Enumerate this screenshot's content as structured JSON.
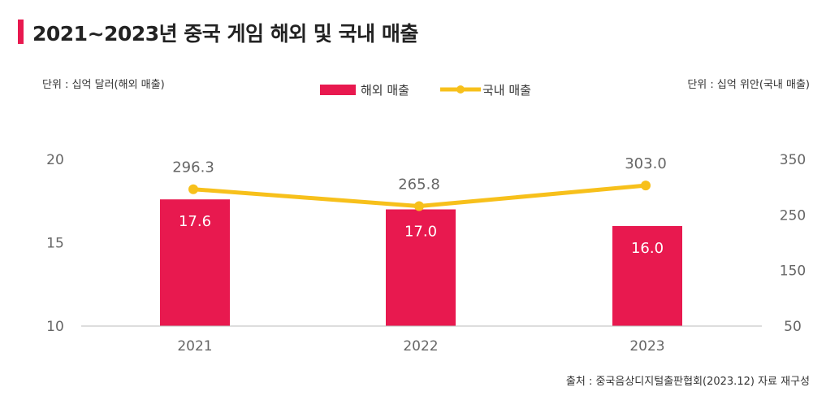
{
  "title": "2021~2023년 중국 게임 해외 및 국내 매출",
  "unit_left": "단위 : 십억 달러(해외 매출)",
  "unit_right": "단위 : 십억 위안(국내 매출)",
  "source": "출처 : 중국음상디지털출판협회(2023.12) 자료 재구성",
  "colors": {
    "accent": "#e8194f",
    "bar": "#e8194f",
    "line": "#f7c01b"
  },
  "chart_data": {
    "type": "bar",
    "categories": [
      "2021",
      "2022",
      "2023"
    ],
    "series": [
      {
        "name": "해외 매출",
        "type": "bar",
        "axis": "left",
        "values": [
          17.6,
          17.0,
          16.0
        ],
        "labels": [
          "17.6",
          "17.0",
          "16.0"
        ]
      },
      {
        "name": "국내 매출",
        "type": "line",
        "axis": "right",
        "values": [
          296.3,
          265.8,
          303.0
        ],
        "labels": [
          "296.3",
          "265.8",
          "303.0"
        ]
      }
    ],
    "left_axis": {
      "ylim": [
        10,
        20
      ],
      "ticks": [
        "10",
        "15",
        "20"
      ]
    },
    "right_axis": {
      "ylim": [
        50,
        350
      ],
      "ticks": [
        "50",
        "150",
        "250",
        "350"
      ]
    },
    "legend_position": "top-center",
    "grid": false
  }
}
